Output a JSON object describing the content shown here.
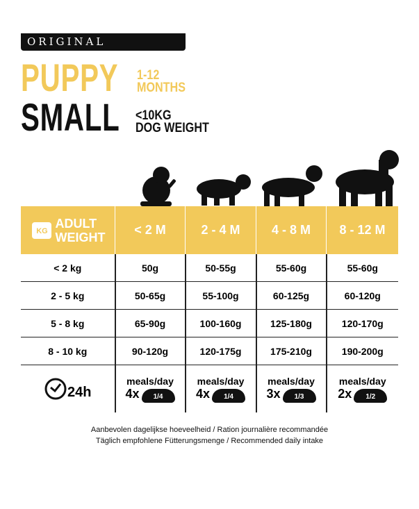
{
  "header": {
    "badge": "ORIGINAL",
    "title1": "PUPPY",
    "age_range": "1-12",
    "age_unit": "MONTHS",
    "title2": "SMALL",
    "weight_limit": "<10KG",
    "weight_label": "DOG WEIGHT"
  },
  "table": {
    "corner": {
      "icon_text": "KG",
      "label1": "ADULT",
      "label2": "WEIGHT"
    },
    "columns": [
      "< 2 M",
      "2 - 4 M",
      "4 - 8 M",
      "8 - 12 M"
    ],
    "rows": [
      {
        "weight": "< 2 kg",
        "values": [
          "50g",
          "50-55g",
          "55-60g",
          "55-60g"
        ]
      },
      {
        "weight": "2 - 5 kg",
        "values": [
          "50-65g",
          "55-100g",
          "60-125g",
          "60-120g"
        ]
      },
      {
        "weight": "5 - 8 kg",
        "values": [
          "65-90g",
          "100-160g",
          "125-180g",
          "120-170g"
        ]
      },
      {
        "weight": "8 - 10 kg",
        "values": [
          "90-120g",
          "120-175g",
          "175-210g",
          "190-200g"
        ]
      }
    ],
    "meals": {
      "clock_label": "24h",
      "label": "meals/day",
      "items": [
        {
          "count": "4x",
          "portion": "1/4"
        },
        {
          "count": "4x",
          "portion": "1/4"
        },
        {
          "count": "3x",
          "portion": "1/3"
        },
        {
          "count": "2x",
          "portion": "1/2"
        }
      ]
    }
  },
  "footer": {
    "line1": "Aanbevolen dagelijkse hoeveelheid / Ration journalière recommandée",
    "line2": "Täglich empfohlene Fütterungsmenge / Recommended daily intake"
  },
  "colors": {
    "yellow": "#f2c95a",
    "black": "#111111"
  }
}
